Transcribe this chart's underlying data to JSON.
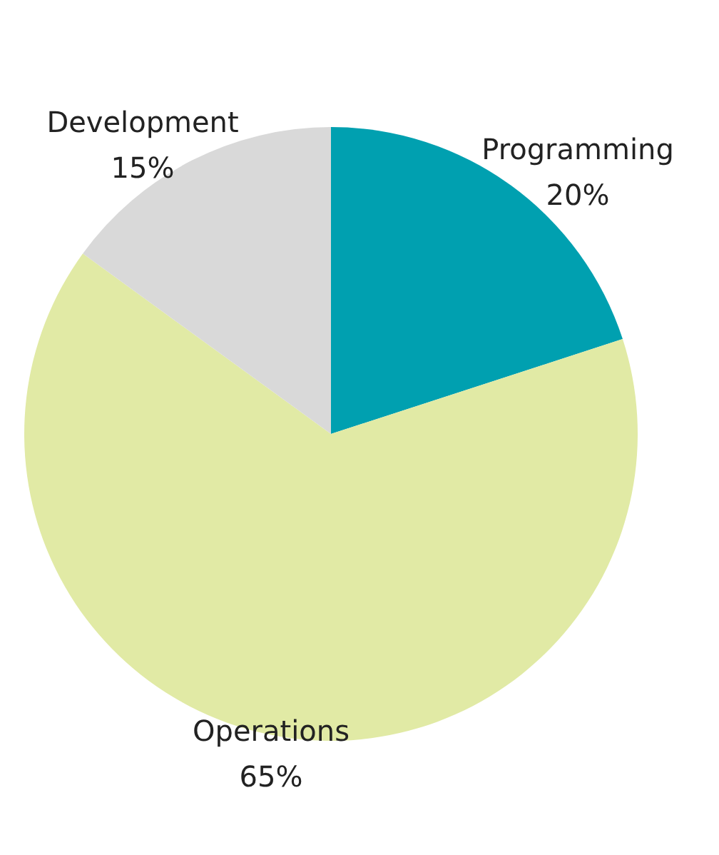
{
  "chart_data": {
    "type": "pie",
    "categories": [
      "Programming",
      "Operations",
      "Development"
    ],
    "values": [
      20,
      65,
      15
    ],
    "colors": [
      "#00a0b0",
      "#e1eaa5",
      "#d9d9d9"
    ],
    "value_labels": [
      "20%",
      "65%",
      "15%"
    ],
    "legend": false
  }
}
